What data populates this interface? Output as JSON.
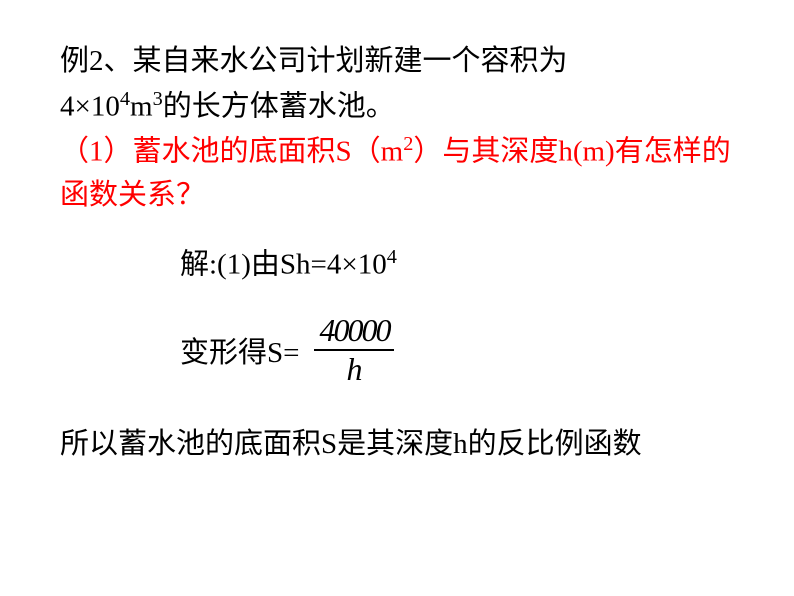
{
  "colors": {
    "black": "#000000",
    "red": "#ff0000",
    "background": "#ffffff"
  },
  "typography": {
    "main_fontsize": 29,
    "fraction_fontsize": 32,
    "sup_scale": 0.7,
    "font_family_cjk": "SimSun",
    "font_family_math": "Times New Roman"
  },
  "problem": {
    "line1": "例2、某自来水公司计划新建一个容积为",
    "line2_pre": "4×10",
    "line2_sup1": "4",
    "line2_mid": "m",
    "line2_sup2": "3",
    "line2_post": "的长方体蓄水池。",
    "question_pre": "（1）蓄水池的底面积S（m",
    "question_sup": "2",
    "question_post": "）与其深度h(m)有怎样的函数关系？"
  },
  "solution": {
    "step1_pre": "解:(1)由Sh=4×10",
    "step1_sup": "4",
    "step2_label": "变形得S=",
    "fraction_numerator": "40000",
    "fraction_denominator": "h"
  },
  "conclusion": {
    "text": "所以蓄水池的底面积S是其深度h的反比例函数"
  }
}
